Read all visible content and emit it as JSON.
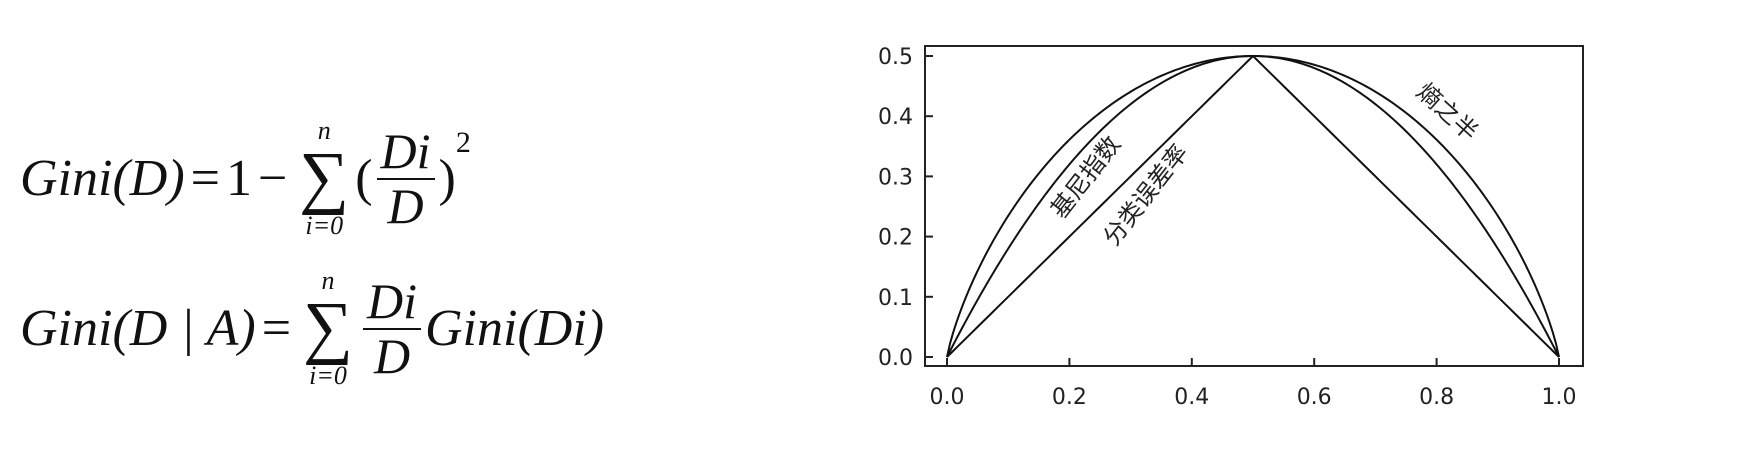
{
  "formulas": {
    "f1": {
      "lhs": "Gini(D)",
      "eq": "=",
      "one": "1",
      "minus": "−",
      "sum_sym": "∑",
      "sum_top": "n",
      "sum_bot": "i=0",
      "open": "(",
      "num": "Di",
      "den": "D",
      "close": ")",
      "power": "2"
    },
    "f2": {
      "lhs": "Gini(D | A)",
      "eq": "=",
      "sum_sym": "∑",
      "sum_top": "n",
      "sum_bot": "i=0",
      "num": "Di",
      "den": "D",
      "rhs": "Gini(Di)"
    }
  },
  "chart_data": {
    "type": "line",
    "xlim": [
      0,
      1
    ],
    "ylim": [
      0,
      0.5
    ],
    "x_ticks": [
      "0.0",
      "0.2",
      "0.4",
      "0.6",
      "0.8",
      "1.0"
    ],
    "y_ticks": [
      "0.0",
      "0.1",
      "0.2",
      "0.3",
      "0.4",
      "0.5"
    ],
    "grid": false,
    "series": [
      {
        "name": "熵之半",
        "formula": "-0.5*(p*log2(p)+(1-p)*log2(1-p))",
        "x": [
          0.0,
          0.1,
          0.2,
          0.3,
          0.4,
          0.5,
          0.6,
          0.7,
          0.8,
          0.9,
          1.0
        ],
        "values": [
          0.0,
          0.234,
          0.361,
          0.441,
          0.485,
          0.5,
          0.485,
          0.441,
          0.361,
          0.234,
          0.0
        ]
      },
      {
        "name": "基尼指数",
        "formula": "2*p*(1-p)",
        "x": [
          0.0,
          0.1,
          0.2,
          0.3,
          0.4,
          0.5,
          0.6,
          0.7,
          0.8,
          0.9,
          1.0
        ],
        "values": [
          0.0,
          0.18,
          0.32,
          0.42,
          0.48,
          0.5,
          0.48,
          0.42,
          0.32,
          0.18,
          0.0
        ]
      },
      {
        "name": "分类误差率",
        "formula": "min(p,1-p)",
        "x": [
          0.0,
          0.5,
          1.0
        ],
        "values": [
          0.0,
          0.5,
          0.0
        ]
      }
    ],
    "annotations": [
      "熵之半",
      "基尼指数",
      "分类误差率"
    ]
  }
}
